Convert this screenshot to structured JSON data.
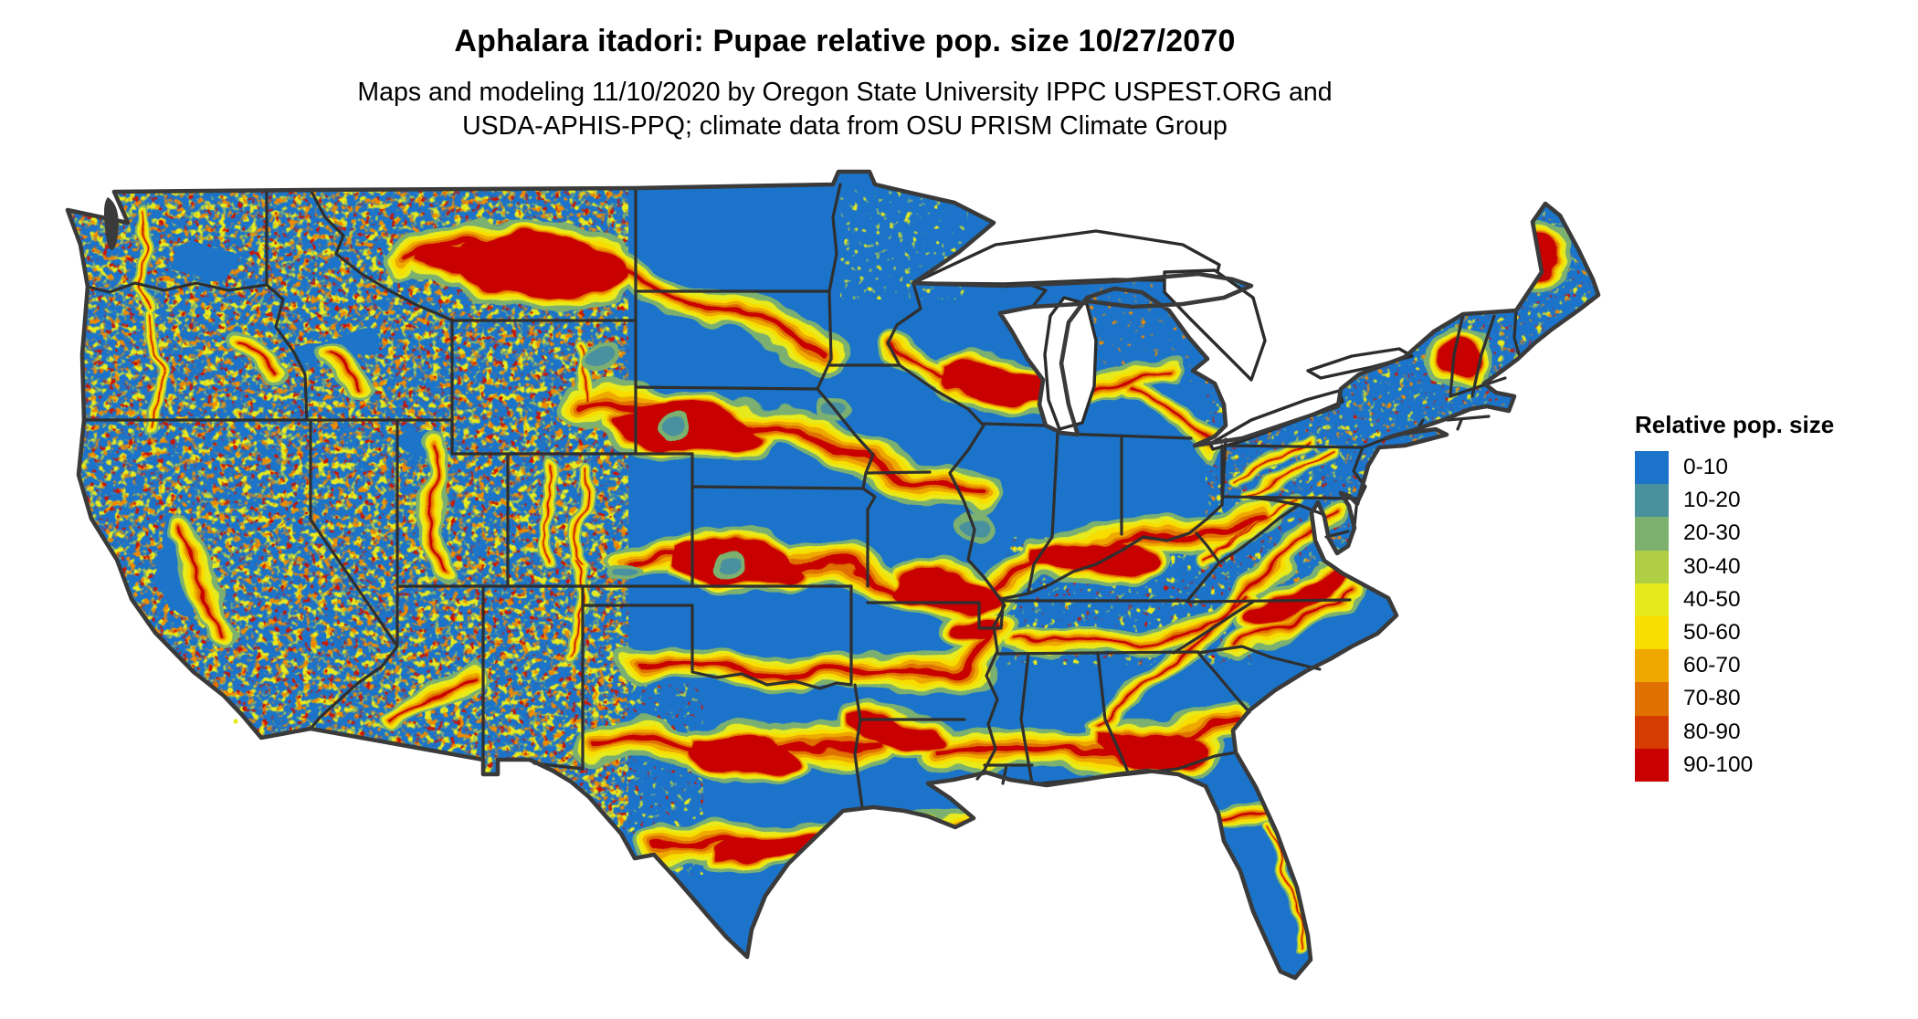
{
  "header": {
    "title": "Aphalara itadori: Pupae relative pop. size 10/27/2070",
    "subtitle_line1": "Maps and modeling 11/10/2020 by Oregon State University IPPC USPEST.ORG and",
    "subtitle_line2": "USDA-APHIS-PPQ; climate data from OSU PRISM Climate Group"
  },
  "legend": {
    "title": "Relative pop. size",
    "bins": [
      {
        "label": "0-10",
        "color": "#1B74C9"
      },
      {
        "label": "10-20",
        "color": "#4A919E"
      },
      {
        "label": "20-30",
        "color": "#7CB06F"
      },
      {
        "label": "30-40",
        "color": "#AFCE44"
      },
      {
        "label": "40-50",
        "color": "#E7EA1A"
      },
      {
        "label": "50-60",
        "color": "#F7DE00"
      },
      {
        "label": "60-70",
        "color": "#EEA800"
      },
      {
        "label": "70-80",
        "color": "#E07000"
      },
      {
        "label": "80-90",
        "color": "#D63C00"
      },
      {
        "label": "90-100",
        "color": "#C80000"
      }
    ]
  },
  "map": {
    "area_depicted": "Contiguous United States",
    "base_color": "#1B74C9",
    "state_border_color": "#2F2F2F",
    "coast_color": "#3A3A3A",
    "water_color": "#FFFFFF"
  }
}
